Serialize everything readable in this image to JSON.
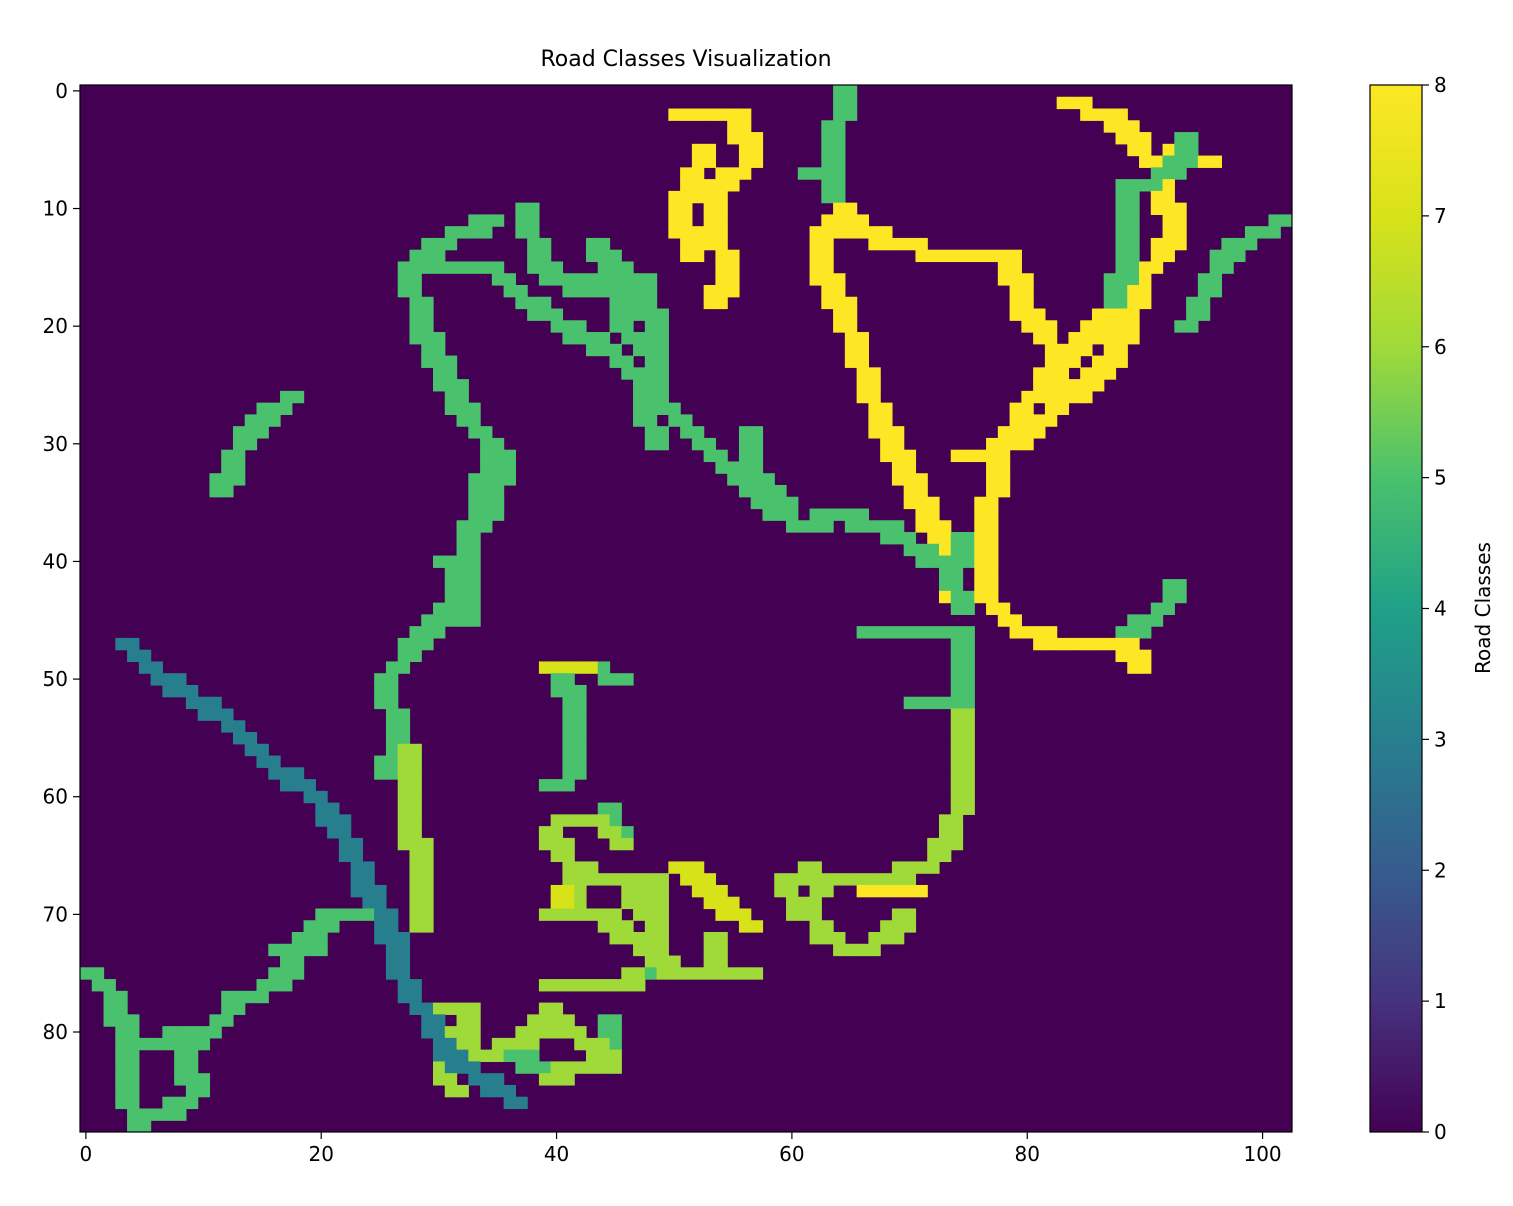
{
  "chart_data": {
    "type": "heatmap",
    "title": "Road Classes Visualization",
    "xlabel": "",
    "ylabel": "",
    "colorbar_label": "Road Classes",
    "colormap": "viridis",
    "xlim": [
      -0.5,
      102.5
    ],
    "ylim": [
      88.5,
      -0.5
    ],
    "x_ticks": [
      0,
      20,
      40,
      60,
      80,
      100
    ],
    "y_ticks": [
      0,
      10,
      20,
      30,
      40,
      50,
      60,
      70,
      80
    ],
    "colorbar_range": [
      0,
      8
    ],
    "colorbar_ticks": [
      0,
      1,
      2,
      3,
      4,
      5,
      6,
      7,
      8
    ],
    "background_value": 0,
    "segments": [
      {
        "class": 8,
        "points": [
          [
            50,
            2
          ],
          [
            55,
            2
          ],
          [
            56,
            6
          ],
          [
            53,
            8
          ],
          [
            53,
            12
          ],
          [
            54,
            15
          ],
          [
            53,
            18
          ]
        ]
      },
      {
        "class": 8,
        "points": [
          [
            52,
            5
          ],
          [
            50,
            10
          ],
          [
            51,
            14
          ]
        ]
      },
      {
        "class": 8,
        "points": [
          [
            64,
            10
          ],
          [
            62,
            12
          ],
          [
            62,
            15
          ],
          [
            64,
            19
          ],
          [
            66,
            25
          ],
          [
            68,
            30
          ],
          [
            70,
            34
          ],
          [
            72,
            38
          ],
          [
            73,
            42
          ],
          [
            74,
            44
          ]
        ]
      },
      {
        "class": 8,
        "points": [
          [
            64,
            11
          ],
          [
            68,
            13
          ],
          [
            73,
            14
          ],
          [
            78,
            14
          ],
          [
            79,
            18
          ],
          [
            82,
            22
          ],
          [
            86,
            20
          ],
          [
            88,
            18
          ]
        ]
      },
      {
        "class": 8,
        "points": [
          [
            83,
            1
          ],
          [
            88,
            3
          ],
          [
            90,
            6
          ]
        ]
      },
      {
        "class": 8,
        "points": [
          [
            92,
            5
          ],
          [
            95,
            6
          ]
        ]
      },
      {
        "class": 8,
        "points": [
          [
            91,
            8
          ],
          [
            92,
            12
          ],
          [
            89,
            16
          ],
          [
            87,
            22
          ],
          [
            83,
            26
          ],
          [
            78,
            30
          ],
          [
            74,
            31
          ]
        ]
      },
      {
        "class": 8,
        "points": [
          [
            86,
            19
          ],
          [
            82,
            23
          ],
          [
            79,
            27
          ],
          [
            77,
            31
          ],
          [
            76,
            37
          ],
          [
            76,
            43
          ],
          [
            79,
            46
          ],
          [
            83,
            47
          ],
          [
            88,
            47
          ],
          [
            89,
            49
          ]
        ]
      },
      {
        "class": 8,
        "points": [
          [
            66,
            68
          ],
          [
            70,
            68
          ]
        ]
      },
      {
        "class": 8,
        "points": [
          [
            83,
            22
          ],
          [
            81,
            26
          ]
        ]
      },
      {
        "class": 5,
        "points": [
          [
            64,
            0
          ],
          [
            63,
            4
          ],
          [
            63,
            9
          ]
        ]
      },
      {
        "class": 5,
        "points": [
          [
            61,
            7
          ],
          [
            63,
            7
          ]
        ]
      },
      {
        "class": 5,
        "points": [
          [
            93,
            4
          ],
          [
            92,
            7
          ],
          [
            88,
            8
          ],
          [
            88,
            13
          ],
          [
            87,
            18
          ]
        ]
      },
      {
        "class": 5,
        "points": [
          [
            101,
            11
          ],
          [
            97,
            13
          ],
          [
            95,
            16
          ],
          [
            93,
            20
          ]
        ]
      },
      {
        "class": 5,
        "points": [
          [
            34,
            11
          ],
          [
            29,
            13
          ],
          [
            27,
            15
          ],
          [
            28,
            20
          ],
          [
            30,
            24
          ],
          [
            32,
            28
          ],
          [
            34,
            30
          ],
          [
            33,
            35
          ],
          [
            32,
            38
          ],
          [
            31,
            43
          ],
          [
            28,
            46
          ],
          [
            25,
            50
          ],
          [
            26,
            55
          ],
          [
            25,
            58
          ]
        ]
      },
      {
        "class": 5,
        "points": [
          [
            30,
            15
          ],
          [
            34,
            15
          ],
          [
            37,
            18
          ],
          [
            40,
            20
          ],
          [
            44,
            22
          ],
          [
            47,
            25
          ],
          [
            50,
            28
          ],
          [
            53,
            31
          ],
          [
            56,
            34
          ],
          [
            60,
            37
          ],
          [
            63,
            36
          ],
          [
            67,
            37
          ],
          [
            70,
            39
          ],
          [
            73,
            41
          ]
        ]
      },
      {
        "class": 5,
        "points": [
          [
            37,
            10
          ],
          [
            38,
            15
          ],
          [
            42,
            17
          ],
          [
            45,
            15
          ],
          [
            47,
            19
          ]
        ]
      },
      {
        "class": 5,
        "points": [
          [
            43,
            13
          ],
          [
            45,
            16
          ],
          [
            45,
            20
          ],
          [
            48,
            23
          ]
        ]
      },
      {
        "class": 5,
        "points": [
          [
            47,
            16
          ],
          [
            48,
            22
          ],
          [
            47,
            27
          ],
          [
            48,
            30
          ]
        ]
      },
      {
        "class": 5,
        "points": [
          [
            35,
            31
          ],
          [
            34,
            35
          ],
          [
            32,
            38
          ]
        ]
      },
      {
        "class": 5,
        "points": [
          [
            56,
            29
          ],
          [
            56,
            33
          ],
          [
            59,
            35
          ]
        ]
      },
      {
        "class": 5,
        "points": [
          [
            30,
            40
          ],
          [
            32,
            42
          ],
          [
            32,
            45
          ]
        ]
      },
      {
        "class": 5,
        "points": [
          [
            74,
            38
          ],
          [
            73,
            41
          ],
          [
            74,
            44
          ]
        ]
      },
      {
        "class": 5,
        "points": [
          [
            66,
            46
          ],
          [
            74,
            46
          ],
          [
            74,
            52
          ],
          [
            70,
            52
          ]
        ]
      },
      {
        "class": 5,
        "points": [
          [
            88,
            46
          ],
          [
            91,
            44
          ],
          [
            92,
            42
          ]
        ]
      },
      {
        "class": 5,
        "points": [
          [
            17,
            26
          ],
          [
            14,
            28
          ],
          [
            12,
            31
          ],
          [
            11,
            34
          ]
        ]
      },
      {
        "class": 5,
        "points": [
          [
            0,
            75
          ],
          [
            2,
            77
          ],
          [
            3,
            81
          ],
          [
            3,
            85
          ],
          [
            4,
            88
          ]
        ]
      },
      {
        "class": 5,
        "points": [
          [
            3,
            81
          ],
          [
            8,
            81
          ],
          [
            11,
            79
          ],
          [
            12,
            77
          ],
          [
            16,
            76
          ],
          [
            17,
            73
          ],
          [
            20,
            70
          ],
          [
            24,
            70
          ],
          [
            26,
            72
          ]
        ]
      },
      {
        "class": 5,
        "points": [
          [
            7,
            80
          ],
          [
            9,
            85
          ],
          [
            6,
            87
          ]
        ]
      },
      {
        "class": 5,
        "points": [
          [
            16,
            73
          ],
          [
            19,
            73
          ]
        ]
      },
      {
        "class": 5,
        "points": [
          [
            40,
            49
          ],
          [
            41,
            53
          ],
          [
            41,
            58
          ],
          [
            39,
            59
          ]
        ]
      },
      {
        "class": 5,
        "points": [
          [
            42,
            49
          ],
          [
            45,
            50
          ]
        ]
      },
      {
        "class": 5,
        "points": [
          [
            44,
            61
          ],
          [
            45,
            64
          ]
        ]
      },
      {
        "class": 5,
        "points": [
          [
            48,
            75
          ],
          [
            52,
            75
          ]
        ]
      },
      {
        "class": 5,
        "points": [
          [
            44,
            79
          ],
          [
            44,
            81
          ]
        ]
      },
      {
        "class": 5,
        "points": [
          [
            36,
            82
          ],
          [
            38,
            83
          ]
        ]
      },
      {
        "class": 6,
        "points": [
          [
            74,
            53
          ],
          [
            74,
            59
          ],
          [
            73,
            63
          ],
          [
            71,
            66
          ],
          [
            66,
            67
          ],
          [
            62,
            67
          ],
          [
            61,
            69
          ],
          [
            62,
            72
          ],
          [
            65,
            73
          ],
          [
            67,
            72
          ],
          [
            69,
            70
          ]
        ]
      },
      {
        "class": 6,
        "points": [
          [
            61,
            66
          ],
          [
            59,
            67
          ],
          [
            60,
            70
          ]
        ]
      },
      {
        "class": 6,
        "points": [
          [
            27,
            56
          ],
          [
            27,
            62
          ],
          [
            28,
            66
          ],
          [
            28,
            71
          ]
        ]
      },
      {
        "class": 6,
        "points": [
          [
            40,
            62
          ],
          [
            43,
            62
          ],
          [
            45,
            64
          ]
        ]
      },
      {
        "class": 6,
        "points": [
          [
            39,
            63
          ],
          [
            41,
            66
          ],
          [
            43,
            67
          ],
          [
            45,
            67
          ]
        ]
      },
      {
        "class": 6,
        "points": [
          [
            44,
            67
          ],
          [
            48,
            67
          ],
          [
            48,
            74
          ],
          [
            50,
            75
          ],
          [
            55,
            75
          ]
        ]
      },
      {
        "class": 6,
        "points": [
          [
            39,
            70
          ],
          [
            44,
            70
          ],
          [
            45,
            72
          ],
          [
            47,
            72
          ],
          [
            48,
            74
          ]
        ]
      },
      {
        "class": 6,
        "points": [
          [
            46,
            68
          ],
          [
            47,
            70
          ]
        ]
      },
      {
        "class": 6,
        "points": [
          [
            41,
            67
          ],
          [
            41,
            70
          ]
        ]
      },
      {
        "class": 6,
        "points": [
          [
            53,
            72
          ],
          [
            53,
            75
          ],
          [
            56,
            75
          ]
        ]
      },
      {
        "class": 6,
        "points": [
          [
            39,
            76
          ],
          [
            45,
            76
          ],
          [
            46,
            75
          ]
        ]
      },
      {
        "class": 6,
        "points": [
          [
            29,
            78
          ],
          [
            32,
            78
          ],
          [
            32,
            82
          ],
          [
            36,
            81
          ],
          [
            39,
            78
          ],
          [
            40,
            80
          ],
          [
            43,
            81
          ],
          [
            44,
            83
          ],
          [
            40,
            83
          ],
          [
            39,
            84
          ]
        ]
      },
      {
        "class": 6,
        "points": [
          [
            31,
            80
          ],
          [
            30,
            84
          ],
          [
            31,
            85
          ]
        ]
      },
      {
        "class": 7,
        "points": [
          [
            39,
            49
          ],
          [
            42,
            49
          ]
        ]
      },
      {
        "class": 7,
        "points": [
          [
            50,
            66
          ],
          [
            52,
            67
          ],
          [
            53,
            69
          ],
          [
            56,
            71
          ]
        ]
      },
      {
        "class": 7,
        "points": [
          [
            40,
            68
          ],
          [
            40,
            69
          ]
        ]
      },
      {
        "class": 3,
        "points": [
          [
            3,
            47
          ],
          [
            6,
            50
          ],
          [
            9,
            52
          ],
          [
            12,
            54
          ],
          [
            14,
            56
          ],
          [
            16,
            58
          ],
          [
            18,
            59
          ],
          [
            20,
            61
          ],
          [
            22,
            64
          ],
          [
            23,
            67
          ],
          [
            25,
            70
          ],
          [
            26,
            74
          ],
          [
            27,
            77
          ],
          [
            29,
            79
          ],
          [
            30,
            82
          ],
          [
            33,
            84
          ],
          [
            36,
            86
          ]
        ]
      }
    ]
  }
}
